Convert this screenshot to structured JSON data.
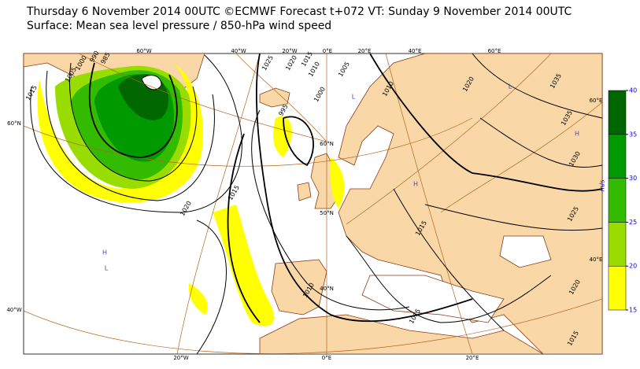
{
  "header": {
    "title": "Thursday 6 November 2014 00UTC ©ECMWF Forecast t+072 VT: Sunday 9 November 2014 00UTC",
    "subtitle": "Surface: Mean sea level pressure / 850-hPa wind speed"
  },
  "graticule_labels": [
    "60°W",
    "40°W",
    "20°W",
    "0°E",
    "20°E",
    "40°E",
    "60°E",
    "60°N",
    "40°W",
    "20°W",
    "0°E",
    "20°E",
    "60°E",
    "40°E",
    "60°N",
    "50°N",
    "40°N"
  ],
  "isobar_labels": [
    "1035",
    "1030",
    "1025",
    "1020",
    "1015",
    "1015",
    "1015",
    "1010",
    "1015",
    "1020",
    "1010",
    "1020",
    "1015",
    "1005",
    "1000",
    "990",
    "985",
    "995",
    "1000",
    "1005",
    "1010",
    "1015",
    "1020",
    "1025",
    "1035"
  ],
  "pressure_centres": [
    "H",
    "L",
    "H",
    "L",
    "H",
    "L"
  ],
  "colorbar": {
    "unit": "m/s",
    "ticks": [
      15,
      20,
      25,
      30,
      35,
      40
    ],
    "colors": [
      "#ffff00",
      "#99dd00",
      "#33bb00",
      "#009900",
      "#006600"
    ]
  }
}
